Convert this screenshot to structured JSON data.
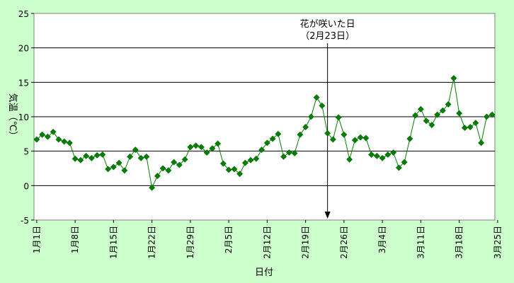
{
  "chart_data": {
    "type": "line",
    "title": "",
    "xlabel": "日付",
    "ylabel": "気温（℃）",
    "ylim": [
      -5,
      25
    ],
    "yticks": [
      25,
      20,
      15,
      10,
      5,
      0,
      -5
    ],
    "yticks_labels": [
      "25",
      "20",
      "15",
      "10",
      "5",
      "0",
      "-5"
    ],
    "grid": true,
    "x_start": "1月1日",
    "x_tick_labels": [
      "1月1日",
      "1月8日",
      "1月15日",
      "1月22日",
      "1月29日",
      "2月5日",
      "2月12日",
      "2月19日",
      "2月26日",
      "3月4日",
      "3月11日",
      "3月18日",
      "3月25日"
    ],
    "x_ticks": [
      "1月1日",
      "1月8日",
      "1月15日",
      "1月22日",
      "1月29日",
      "2月5日",
      "2月12日",
      "2月19日",
      "2月26日",
      "3月4日",
      "3月11日",
      "3月18日",
      "3月25日"
    ],
    "annotation": {
      "line1": "花が咲いた日",
      "line2": "（2月23日）",
      "date": "2月23日"
    },
    "series": [
      {
        "color": "#008000",
        "marker": "diamond",
        "values": [
          6.7,
          7.4,
          7.1,
          7.8,
          6.7,
          6.4,
          6.2,
          3.9,
          3.7,
          4.3,
          4.0,
          4.4,
          4.5,
          2.4,
          2.7,
          3.3,
          2.2,
          4.2,
          5.2,
          4.0,
          4.2,
          -0.3,
          1.4,
          2.5,
          2.2,
          3.4,
          3.0,
          3.8,
          5.6,
          5.8,
          5.6,
          4.8,
          5.4,
          6.1,
          3.2,
          2.3,
          2.4,
          1.7,
          3.3,
          3.7,
          3.9,
          5.2,
          6.2,
          6.8,
          7.5,
          4.2,
          4.8,
          4.7,
          7.4,
          8.5,
          10.0,
          12.8,
          11.6,
          7.6,
          6.7,
          9.9,
          7.4,
          3.8,
          6.6,
          7.0,
          6.9,
          4.5,
          4.3,
          4.0,
          4.5,
          4.8,
          2.6,
          3.4,
          6.8,
          10.2,
          11.1,
          9.4,
          8.8,
          10.3,
          10.9,
          11.8,
          15.6,
          10.5,
          8.4,
          8.5,
          9.1,
          6.2,
          10.0,
          10.3
        ]
      }
    ]
  }
}
